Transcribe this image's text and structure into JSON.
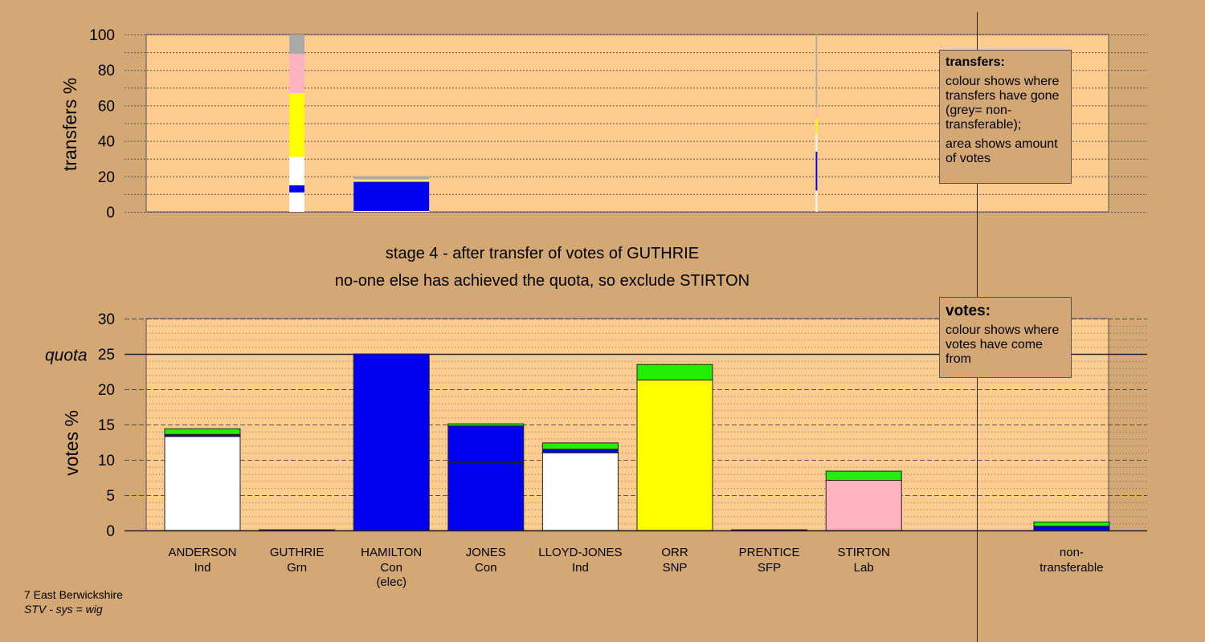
{
  "captions": {
    "stage": "stage 4 - after transfer of votes of GUTHRIE",
    "action": "no-one else has achieved the quota, so exclude STIRTON"
  },
  "legend_transfers": {
    "title": "transfers:",
    "line1": "colour shows where transfers have gone (grey= non-transferable);",
    "line2": "area shows amount of votes"
  },
  "legend_votes": {
    "title": "votes:",
    "line1": "colour shows where votes have come from"
  },
  "footer": {
    "constituency": "7 East Berwickshire",
    "system": "STV - sys = wig"
  },
  "colors": {
    "background": "#d4a875",
    "plot_bg": "#ffcc90",
    "Ind": "#ffffff",
    "Con": "#0000ee",
    "SNP": "#ffff00",
    "Lab": "#ffb3c1",
    "Grn": "#22ee00",
    "nontransferable": "#aaaaaa"
  },
  "chart_data": [
    {
      "type": "bar",
      "id": "transfers",
      "ylabel": "transfers %",
      "ylim": [
        0,
        100
      ],
      "yticks": [
        0,
        20,
        40,
        60,
        80,
        100
      ],
      "grid": true,
      "transfer_bars": [
        {
          "from": "GUTHRIE",
          "slot": 1,
          "width_fraction": 0.2,
          "segments": [
            {
              "to": "ANDERSON",
              "party": "Ind",
              "value": 11
            },
            {
              "to": "HAMILTON",
              "party": "Con",
              "value": 3
            },
            {
              "to": "JONES",
              "party": "Con",
              "value": 1
            },
            {
              "to": "LLOYD-JONES",
              "party": "Ind",
              "value": 16
            },
            {
              "to": "ORR",
              "party": "SNP",
              "value": 36
            },
            {
              "to": "STIRTON",
              "party": "Lab",
              "value": 22
            },
            {
              "to": "non-transferable",
              "party": "nontransferable",
              "value": 11
            }
          ]
        },
        {
          "from": "HAMILTON",
          "slot": 2,
          "width_fraction": 1.0,
          "segments": [
            {
              "to": "ANDERSON",
              "party": "Ind",
              "value": 0.5
            },
            {
              "to": "JONES",
              "party": "Con",
              "value": 16.5
            },
            {
              "to": "LLOYD-JONES",
              "party": "Ind",
              "value": 0.5
            },
            {
              "to": "ORR",
              "party": "SNP",
              "value": 0.5
            },
            {
              "to": "STIRTON",
              "party": "Lab",
              "value": 0.5
            },
            {
              "to": "non-transferable",
              "party": "nontransferable",
              "value": 1.5
            }
          ]
        },
        {
          "from": "PRENTICE",
          "slot": 6.5,
          "width_fraction": 0.02,
          "segments": [
            {
              "to": "ANDERSON",
              "party": "Ind",
              "value": 12
            },
            {
              "to": "JONES",
              "party": "Con",
              "value": 22
            },
            {
              "to": "LLOYD-JONES",
              "party": "Ind",
              "value": 10
            },
            {
              "to": "ORR",
              "party": "SNP",
              "value": 9
            },
            {
              "to": "STIRTON",
              "party": "Lab",
              "value": 6
            },
            {
              "to": "non-transferable",
              "party": "nontransferable",
              "value": 41
            }
          ]
        }
      ]
    },
    {
      "type": "bar",
      "id": "votes",
      "stacked": true,
      "ylabel": "votes %",
      "ylim": [
        0,
        30
      ],
      "yticks": [
        0,
        5,
        10,
        15,
        20,
        25,
        30
      ],
      "quota": 25,
      "quota_label": "quota",
      "grid": true,
      "categories": [
        {
          "name": "ANDERSON",
          "party": "Ind",
          "note": "",
          "segments": [
            {
              "party": "Ind",
              "value": 13.3
            },
            {
              "party": "Con",
              "value": 0.3
            },
            {
              "party": "Grn",
              "value": 0.8
            }
          ]
        },
        {
          "name": "GUTHRIE",
          "party": "Grn",
          "note": "",
          "segments": [
            {
              "party": "Grn",
              "value": 0.1
            }
          ]
        },
        {
          "name": "HAMILTON",
          "party": "Con",
          "note": "(elec)",
          "segments": [
            {
              "party": "Con",
              "value": 25.0
            }
          ]
        },
        {
          "name": "JONES",
          "party": "Con",
          "note": "",
          "segments": [
            {
              "party": "Con",
              "value": 9.6
            },
            {
              "party": "Con",
              "value": 5.2
            },
            {
              "party": "Grn",
              "value": 0.3
            }
          ]
        },
        {
          "name": "LLOYD-JONES",
          "party": "Ind",
          "note": "",
          "segments": [
            {
              "party": "Ind",
              "value": 11.0
            },
            {
              "party": "Con",
              "value": 0.5
            },
            {
              "party": "Grn",
              "value": 0.9
            }
          ]
        },
        {
          "name": "ORR",
          "party": "SNP",
          "note": "",
          "segments": [
            {
              "party": "SNP",
              "value": 21.3
            },
            {
              "party": "Grn",
              "value": 2.2
            }
          ]
        },
        {
          "name": "PRENTICE",
          "party": "SFP",
          "note": "",
          "segments": [
            {
              "party": "SFP",
              "value": 0.1
            }
          ]
        },
        {
          "name": "STIRTON",
          "party": "Lab",
          "note": "",
          "segments": [
            {
              "party": "Lab",
              "value": 7.1
            },
            {
              "party": "Grn",
              "value": 1.3
            }
          ]
        },
        {
          "name": "non-",
          "party": "transferable",
          "note": "",
          "nontransferable": true,
          "segments": [
            {
              "party": "Con",
              "value": 0.6
            },
            {
              "party": "Grn",
              "value": 0.6
            }
          ]
        }
      ]
    }
  ]
}
